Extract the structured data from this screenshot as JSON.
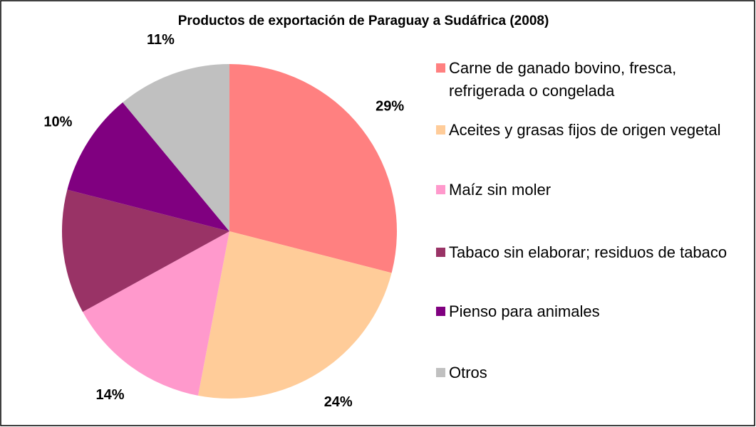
{
  "chart_data": {
    "type": "pie",
    "title": "Productos de exportación de Paraguay a Sudáfrica (2008)",
    "categories": [
      "Carne de ganado bovino, fresca, refrigerada o congelada",
      "Aceites y grasas fijos de origen vegetal",
      "Maíz sin moler",
      "Tabaco sin elaborar; residuos de tabaco",
      "Pienso para animales",
      "Otros"
    ],
    "values": [
      29,
      24,
      14,
      12,
      10,
      11
    ],
    "value_labels": [
      "29%",
      "24%",
      "14%",
      null,
      "10%",
      "11%"
    ],
    "colors": [
      "#ff8080",
      "#ffcc99",
      "#ff99cc",
      "#993366",
      "#800080",
      "#c0c0c0"
    ],
    "legend": "right"
  }
}
